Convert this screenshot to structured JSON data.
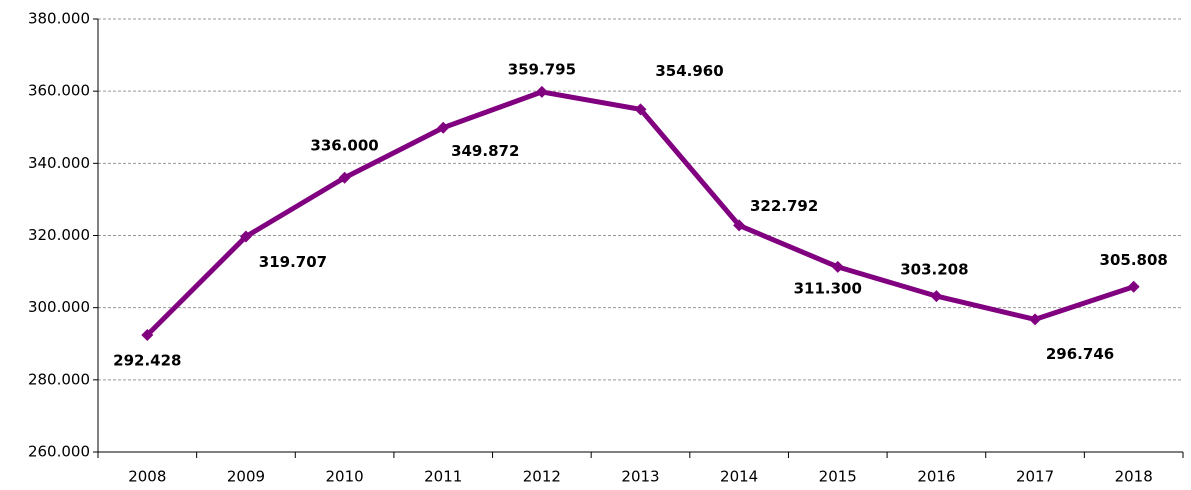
{
  "chart_data": {
    "type": "line",
    "categories": [
      "2008",
      "2009",
      "2010",
      "2011",
      "2012",
      "2013",
      "2014",
      "2015",
      "2016",
      "2017",
      "2018"
    ],
    "series": [
      {
        "color": "#800080",
        "values": [
          292428,
          319707,
          336000,
          349872,
          359795,
          354960,
          322792,
          311300,
          303208,
          296746,
          305808
        ],
        "value_labels": [
          "292.428",
          "319.707",
          "336.000",
          "349.872",
          "359.795",
          "354.960",
          "322.792",
          "311.300",
          "303.208",
          "296.746",
          "305.808"
        ]
      }
    ],
    "ylim": [
      260000,
      380000
    ],
    "yticks": [
      {
        "value": 260000,
        "label": "260.000"
      },
      {
        "value": 280000,
        "label": "280.000"
      },
      {
        "value": 300000,
        "label": "300.000"
      },
      {
        "value": 320000,
        "label": "320.000"
      },
      {
        "value": 340000,
        "label": "340.000"
      },
      {
        "value": 360000,
        "label": "360.000"
      },
      {
        "value": 380000,
        "label": "380.000"
      }
    ],
    "grid": true
  }
}
